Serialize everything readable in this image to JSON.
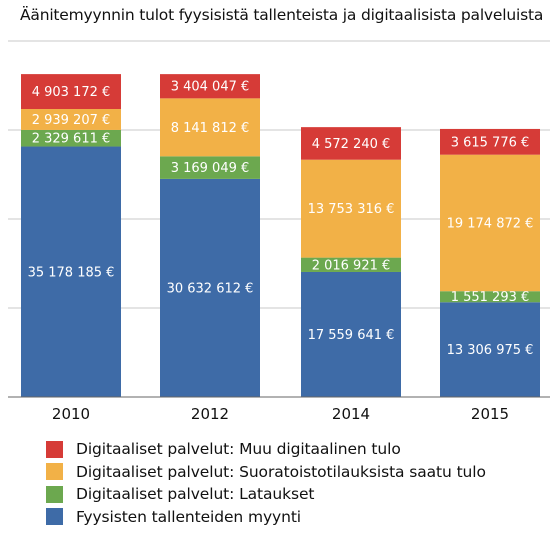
{
  "chart_data": {
    "type": "bar",
    "stacked": true,
    "title": "Äänitemyynnin tulot fyysisistä tallenteista ja digitaalisista palveluista",
    "categories": [
      "2010",
      "2012",
      "2014",
      "2015"
    ],
    "ylim": [
      0,
      50000000
    ],
    "grid": true,
    "legend_position": "bottom",
    "series": [
      {
        "name": "Fyysisten tallenteiden myynti",
        "color": "#3e6ba7",
        "values": [
          35178185,
          30632612,
          17559641,
          13306975
        ],
        "labels": [
          "35 178 185 €",
          "30 632 612 €",
          "17 559 641 €",
          "13 306 975 €"
        ]
      },
      {
        "name": "Digitaaliset palvelut: Lataukset",
        "color": "#6ca84f",
        "values": [
          2329611,
          3169049,
          2016921,
          1551293
        ],
        "labels": [
          "2 329 611 €",
          "3 169 049 €",
          "2 016 921 €",
          "1 551 293 €"
        ]
      },
      {
        "name": "Digitaaliset palvelut: Suoratoistotilauksista saatu tulo",
        "color": "#f2b147",
        "values": [
          2939207,
          8141812,
          13753316,
          19174872
        ],
        "labels": [
          "2 939 207 €",
          "8 141 812 €",
          "13 753 316 €",
          "19 174 872 €"
        ]
      },
      {
        "name": "Digitaaliset palvelut: Muu digitaalinen tulo",
        "color": "#d63b37",
        "values": [
          4903172,
          3404047,
          4572240,
          3615776
        ],
        "labels": [
          "4 903 172 €",
          "3 404 047 €",
          "4 572 240 €",
          "3 615 776 €"
        ]
      }
    ],
    "legend_order": [
      3,
      2,
      1,
      0
    ]
  }
}
